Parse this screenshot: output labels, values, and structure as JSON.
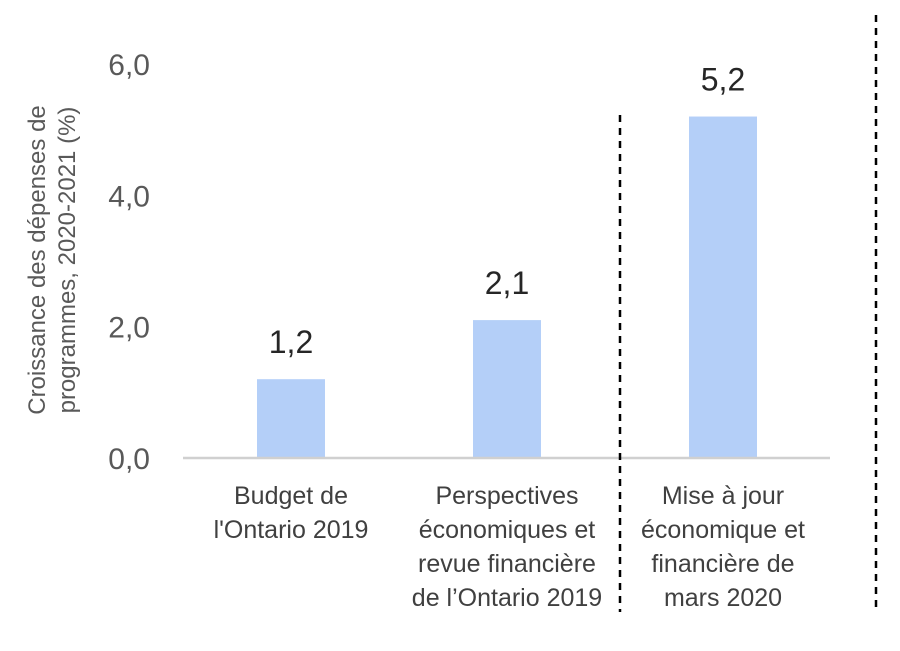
{
  "chart_data": {
    "type": "bar",
    "categories": [
      [
        "Budget de",
        "l'Ontario 2019"
      ],
      [
        "Perspectives",
        "économiques et",
        "revue financière",
        "de l’Ontario 2019"
      ],
      [
        "Mise à jour",
        "économique et",
        "financière de",
        "mars 2020"
      ]
    ],
    "values": [
      1.2,
      2.1,
      5.2
    ],
    "value_labels": [
      "1,2",
      "2,1",
      "5,2"
    ],
    "ylabel": [
      "Croissance des dépenses de",
      "programmes, 2020-2021 (%)"
    ],
    "ylim": [
      0,
      6
    ],
    "yticks": [
      0,
      2,
      4,
      6
    ],
    "ytick_labels": [
      "0,0",
      "2,0",
      "4,0",
      "6,0"
    ],
    "bar_color": "#b4cff8",
    "axis_color": "#d0d0d0",
    "grid": false,
    "legend": "none",
    "separators": "dashed vertical lines after the second and third categories"
  }
}
